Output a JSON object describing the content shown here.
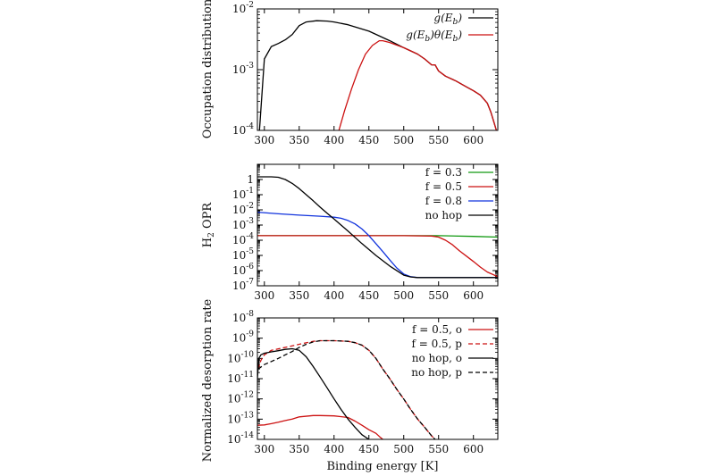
{
  "figure": {
    "xlabel": "Binding energy [K]"
  },
  "chart_data": [
    {
      "type": "line",
      "ylabel": "Occupation distribution",
      "xlim": [
        290,
        635
      ],
      "ylim": [
        0.0001,
        0.01
      ],
      "yscale": "log",
      "x_ticks": [
        300,
        350,
        400,
        450,
        500,
        550,
        600
      ],
      "y_ticks": [
        {
          "base": "10",
          "exp": "-4",
          "value": 0.0001
        },
        {
          "base": "10",
          "exp": "-3",
          "value": 0.001
        },
        {
          "base": "10",
          "exp": "-2",
          "value": 0.01
        }
      ],
      "legend_position": "top-right",
      "grid": false,
      "series": [
        {
          "name": "g(E_b)",
          "label_parts": [
            "g(E",
            "b",
            ")"
          ],
          "color": "#000000",
          "dash": "solid",
          "x": [
            293,
            300,
            310,
            320,
            330,
            340,
            350,
            360,
            375,
            390,
            400,
            420,
            450,
            480,
            500,
            520,
            530,
            540,
            545,
            550,
            560,
            575,
            590,
            600,
            610,
            620,
            625,
            630,
            633
          ],
          "y": [
            0.0001,
            0.0015,
            0.0024,
            0.0027,
            0.0031,
            0.0038,
            0.0053,
            0.0061,
            0.0064,
            0.0063,
            0.0061,
            0.0055,
            0.0043,
            0.003,
            0.0023,
            0.0018,
            0.0015,
            0.0012,
            0.0012,
            0.00095,
            0.00078,
            0.00065,
            0.00052,
            0.00045,
            0.00038,
            0.00028,
            0.0002,
            0.00013,
            0.0001
          ]
        },
        {
          "name": "g(E_b)θ(E_b)",
          "label_parts": [
            "g(E",
            "b",
            ")θ(E",
            "b",
            ")"
          ],
          "color": "#cc1111",
          "dash": "solid",
          "x": [
            407,
            415,
            425,
            435,
            445,
            455,
            465,
            470,
            480,
            500,
            520,
            530,
            540,
            545,
            550,
            560,
            575,
            590,
            600,
            610,
            620,
            625,
            630,
            633
          ],
          "y": [
            0.0001,
            0.00021,
            0.00048,
            0.001,
            0.0018,
            0.0025,
            0.003,
            0.003,
            0.0028,
            0.0023,
            0.0018,
            0.0015,
            0.0012,
            0.0012,
            0.00095,
            0.00078,
            0.00065,
            0.00052,
            0.00045,
            0.00038,
            0.00028,
            0.0002,
            0.00013,
            0.0001
          ]
        }
      ]
    },
    {
      "type": "line",
      "ylabel_parts": [
        "H",
        "2",
        " OPR"
      ],
      "xlim": [
        290,
        635
      ],
      "ylim": [
        1e-07,
        10
      ],
      "yscale": "log",
      "x_ticks": [
        300,
        350,
        400,
        450,
        500,
        550,
        600
      ],
      "y_ticks": [
        {
          "base": "10",
          "exp": "-7",
          "value": 1e-07
        },
        {
          "base": "10",
          "exp": "-6",
          "value": 1e-06
        },
        {
          "base": "10",
          "exp": "-5",
          "value": 1e-05
        },
        {
          "base": "10",
          "exp": "-4",
          "value": 0.0001
        },
        {
          "base": "10",
          "exp": "-3",
          "value": 0.001
        },
        {
          "base": "10",
          "exp": "-2",
          "value": 0.01
        },
        {
          "base": "10",
          "exp": "-1",
          "value": 0.1
        },
        {
          "base": "1",
          "exp": "",
          "value": 1
        }
      ],
      "legend_position": "top-right",
      "grid": false,
      "series": [
        {
          "name": "f = 0.3",
          "color": "#119911",
          "dash": "solid",
          "x": [
            290,
            400,
            500,
            550,
            600,
            635
          ],
          "y": [
            0.0002,
            0.0002,
            0.0002,
            0.0002,
            0.00018,
            0.00016
          ]
        },
        {
          "name": "f = 0.5",
          "color": "#cc1111",
          "dash": "solid",
          "x": [
            290,
            400,
            500,
            540,
            550,
            560,
            570,
            580,
            590,
            600,
            610,
            620,
            635
          ],
          "y": [
            0.0002,
            0.0002,
            0.0002,
            0.00019,
            0.00016,
            0.0001,
            5e-05,
            2e-05,
            9e-06,
            4e-06,
            1.7e-06,
            8e-07,
            4e-07
          ]
        },
        {
          "name": "f = 0.8",
          "color": "#1133dd",
          "dash": "solid",
          "x": [
            290,
            320,
            350,
            380,
            400,
            410,
            420,
            430,
            440,
            450,
            460,
            470,
            480,
            490,
            500,
            510,
            520,
            540,
            580,
            635
          ],
          "y": [
            0.007,
            0.0055,
            0.0045,
            0.0038,
            0.0033,
            0.0028,
            0.002,
            0.0012,
            0.00055,
            0.0002,
            6e-05,
            1.8e-05,
            5e-06,
            1.5e-06,
            6e-07,
            4e-07,
            3.5e-07,
            3.5e-07,
            3.5e-07,
            3.5e-07
          ]
        },
        {
          "name": "no hop",
          "color": "#000000",
          "dash": "solid",
          "x": [
            290,
            310,
            320,
            330,
            340,
            350,
            360,
            370,
            380,
            390,
            400,
            420,
            440,
            460,
            480,
            500,
            510,
            520,
            540,
            580,
            635
          ],
          "y": [
            1.5,
            1.5,
            1.4,
            1.0,
            0.55,
            0.25,
            0.1,
            0.04,
            0.015,
            0.006,
            0.0025,
            0.0004,
            6e-05,
            1e-05,
            2e-06,
            5e-07,
            3.8e-07,
            3.5e-07,
            3.5e-07,
            3.5e-07,
            3.5e-07
          ]
        }
      ]
    },
    {
      "type": "line",
      "ylabel": "Normalized desorption rate",
      "xlabel": "Binding energy [K]",
      "xlim": [
        290,
        635
      ],
      "ylim": [
        1e-14,
        1e-08
      ],
      "yscale": "log",
      "x_ticks": [
        300,
        350,
        400,
        450,
        500,
        550,
        600
      ],
      "y_ticks": [
        {
          "base": "10",
          "exp": "-14",
          "value": 1e-14
        },
        {
          "base": "10",
          "exp": "-13",
          "value": 1e-13
        },
        {
          "base": "10",
          "exp": "-12",
          "value": 1e-12
        },
        {
          "base": "10",
          "exp": "-11",
          "value": 1e-11
        },
        {
          "base": "10",
          "exp": "-10",
          "value": 1e-10
        },
        {
          "base": "10",
          "exp": "-9",
          "value": 1e-09
        },
        {
          "base": "10",
          "exp": "-8",
          "value": 1e-08
        }
      ],
      "legend_position": "top-right",
      "grid": false,
      "series": [
        {
          "name": "f = 0.5, o",
          "color": "#cc1111",
          "dash": "solid",
          "x": [
            290,
            300,
            310,
            320,
            330,
            340,
            350,
            370,
            380,
            400,
            420,
            430,
            440,
            450,
            460,
            465,
            470
          ],
          "y": [
            5e-14,
            5.2e-14,
            6e-14,
            7e-14,
            8.5e-14,
            1e-13,
            1.3e-13,
            1.5e-13,
            1.5e-13,
            1.45e-13,
            1.2e-13,
            8e-14,
            5e-14,
            3e-14,
            2e-14,
            1.4e-14,
            1e-14
          ]
        },
        {
          "name": "f = 0.5, p",
          "color": "#cc1111",
          "dash": "dashed",
          "x": [
            291,
            295,
            300,
            310,
            330,
            350,
            370,
            380,
            400,
            420,
            430,
            440,
            450,
            460,
            470,
            480,
            490,
            500,
            510,
            520,
            530,
            540,
            545
          ],
          "y": [
            3e-11,
            8e-11,
            1.5e-10,
            2.5e-10,
            3.5e-10,
            5e-10,
            7e-10,
            7.5e-10,
            7.5e-10,
            7e-10,
            6e-10,
            4.5e-10,
            2.5e-10,
            1e-10,
            3e-11,
            1e-11,
            3e-12,
            1e-12,
            3e-13,
            1e-13,
            4e-14,
            1.5e-14,
            1e-14
          ]
        },
        {
          "name": "no hop, o",
          "color": "#000000",
          "dash": "solid",
          "x": [
            290,
            292,
            295,
            300,
            310,
            320,
            330,
            340,
            350,
            360,
            370,
            380,
            390,
            400,
            410,
            420,
            430,
            440,
            450
          ],
          "y": [
            1e-11,
            1e-10,
            1.5e-10,
            1.8e-10,
            2.1e-10,
            2.4e-10,
            2.8e-10,
            3e-10,
            2.5e-10,
            1.2e-10,
            4e-11,
            1.2e-11,
            3.5e-12,
            1e-12,
            3e-13,
            1e-13,
            4e-14,
            1.7e-14,
            1e-14
          ]
        },
        {
          "name": "no hop, p",
          "color": "#000000",
          "dash": "dashed",
          "x": [
            291,
            300,
            310,
            320,
            330,
            340,
            350,
            360,
            370,
            380,
            400,
            420,
            430,
            440,
            450,
            460,
            470,
            480,
            490,
            500,
            510,
            520,
            530,
            540,
            545
          ],
          "y": [
            3e-11,
            5e-11,
            7e-11,
            1e-10,
            1.5e-10,
            2.2e-10,
            3.5e-10,
            5e-10,
            6.5e-10,
            7.5e-10,
            7.5e-10,
            7e-10,
            6e-10,
            4.5e-10,
            2.5e-10,
            1e-10,
            3e-11,
            1e-11,
            3e-12,
            1e-12,
            3e-13,
            1e-13,
            4e-14,
            1.5e-14,
            1e-14
          ]
        }
      ]
    }
  ]
}
